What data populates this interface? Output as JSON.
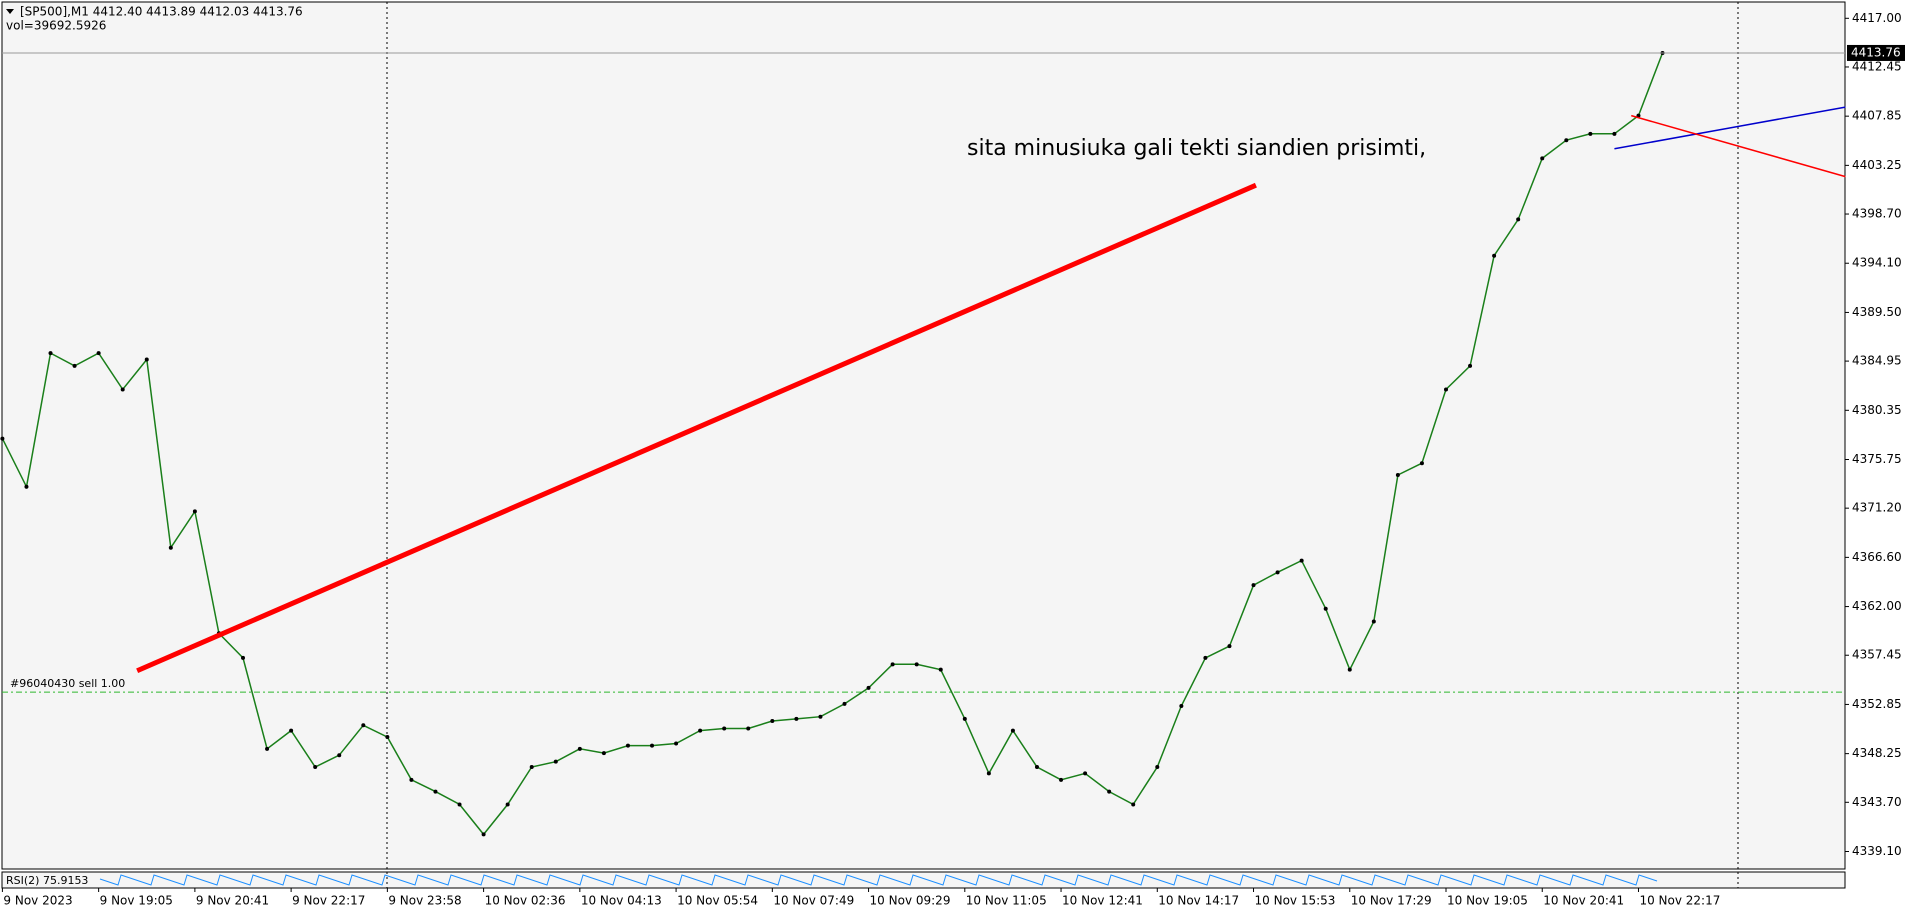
{
  "chart_data": {
    "type": "line",
    "header": "[SP500],M1  4412.40 4413.89 4412.03 4413.76",
    "volume": "vol=39692.5926",
    "annotation": "sita minusiuka gali tekti siandien prisimti,",
    "indicator_label": "RSI(2) 75.9153",
    "order_line": {
      "value": 4354.0,
      "label": "#96040430 sell 1.00",
      "color": "#2eb82e"
    },
    "last_price": 4413.76,
    "color": "#1a7f1a",
    "categories": [
      "9 Nov 2023",
      null,
      null,
      null,
      "9 Nov 19:05",
      null,
      null,
      null,
      "9 Nov 20:41",
      null,
      null,
      null,
      "9 Nov 22:17",
      null,
      null,
      null,
      "9 Nov 23:58",
      null,
      null,
      null,
      "10 Nov 02:36",
      null,
      null,
      null,
      "10 Nov 04:13",
      null,
      null,
      null,
      "10 Nov 05:54",
      null,
      null,
      null,
      "10 Nov 07:49",
      null,
      null,
      null,
      "10 Nov 09:29",
      null,
      null,
      null,
      "10 Nov 11:05",
      null,
      null,
      null,
      "10 Nov 12:41",
      null,
      null,
      null,
      "10 Nov 14:17",
      null,
      null,
      null,
      "10 Nov 15:53",
      null,
      null,
      null,
      "10 Nov 17:29",
      null,
      null,
      null,
      "10 Nov 19:05",
      null,
      null,
      null,
      "10 Nov 20:41",
      null,
      null,
      null,
      "10 Nov 22:17",
      null
    ],
    "values": [
      4377.7,
      4373.2,
      4385.7,
      4384.5,
      4385.7,
      4382.3,
      4385.1,
      4367.5,
      4370.9,
      4359.5,
      4357.2,
      4348.7,
      4350.4,
      4347.0,
      4348.1,
      4350.9,
      4349.8,
      4345.8,
      4344.7,
      4343.5,
      4340.7,
      4343.5,
      4347.0,
      4347.5,
      4348.7,
      4348.3,
      4349.0,
      4349.0,
      4349.2,
      4350.4,
      4350.6,
      4350.6,
      4351.3,
      4351.5,
      4351.7,
      4352.9,
      4354.4,
      4356.6,
      4356.6,
      4356.1,
      4351.5,
      4346.4,
      4350.4,
      4347.0,
      4345.8,
      4346.4,
      4344.7,
      4343.5,
      4347.0,
      4352.7,
      4357.2,
      4358.3,
      4364.0,
      4365.2,
      4366.3,
      4361.8,
      4356.1,
      4360.6,
      4374.3,
      4375.4,
      4382.3,
      4384.5,
      4394.8,
      4398.2,
      4403.9,
      4405.6,
      4406.2,
      4406.2,
      4407.9,
      4413.76
    ],
    "lines": [
      {
        "color": "#ff0000",
        "x": [
          5.6,
          52.1
        ],
        "y": [
          4356.0,
          4401.4
        ]
      },
      {
        "color": "#0000cc",
        "x": [
          67.0,
          76.6
        ],
        "y": [
          4404.8,
          4408.7
        ]
      },
      {
        "color": "#ff0000",
        "x": [
          67.7,
          76.6
        ],
        "y": [
          4407.9,
          4402.2
        ]
      }
    ],
    "ylim": [
      4339.1,
      4417.0
    ],
    "yticks": [
      {
        "value": 4417.0,
        "label": "4417.00"
      },
      {
        "value": 4412.45,
        "label": "4412.45"
      },
      {
        "value": 4407.85,
        "label": "4407.85"
      },
      {
        "value": 4403.25,
        "label": "4403.25"
      },
      {
        "value": 4398.7,
        "label": "4398.70"
      },
      {
        "value": 4394.1,
        "label": "4394.10"
      },
      {
        "value": 4389.5,
        "label": "4389.50"
      },
      {
        "value": 4384.95,
        "label": "4384.95"
      },
      {
        "value": 4380.35,
        "label": "4380.35"
      },
      {
        "value": 4375.75,
        "label": "4375.75"
      },
      {
        "value": 4371.2,
        "label": "4371.20"
      },
      {
        "value": 4366.6,
        "label": "4366.60"
      },
      {
        "value": 4362.0,
        "label": "4362.00"
      },
      {
        "value": 4357.45,
        "label": "4357.45"
      },
      {
        "value": 4352.85,
        "label": "4352.85"
      },
      {
        "value": 4348.25,
        "label": "4348.25"
      },
      {
        "value": 4343.7,
        "label": "4343.70"
      },
      {
        "value": 4339.1,
        "label": "4339.10"
      }
    ]
  }
}
